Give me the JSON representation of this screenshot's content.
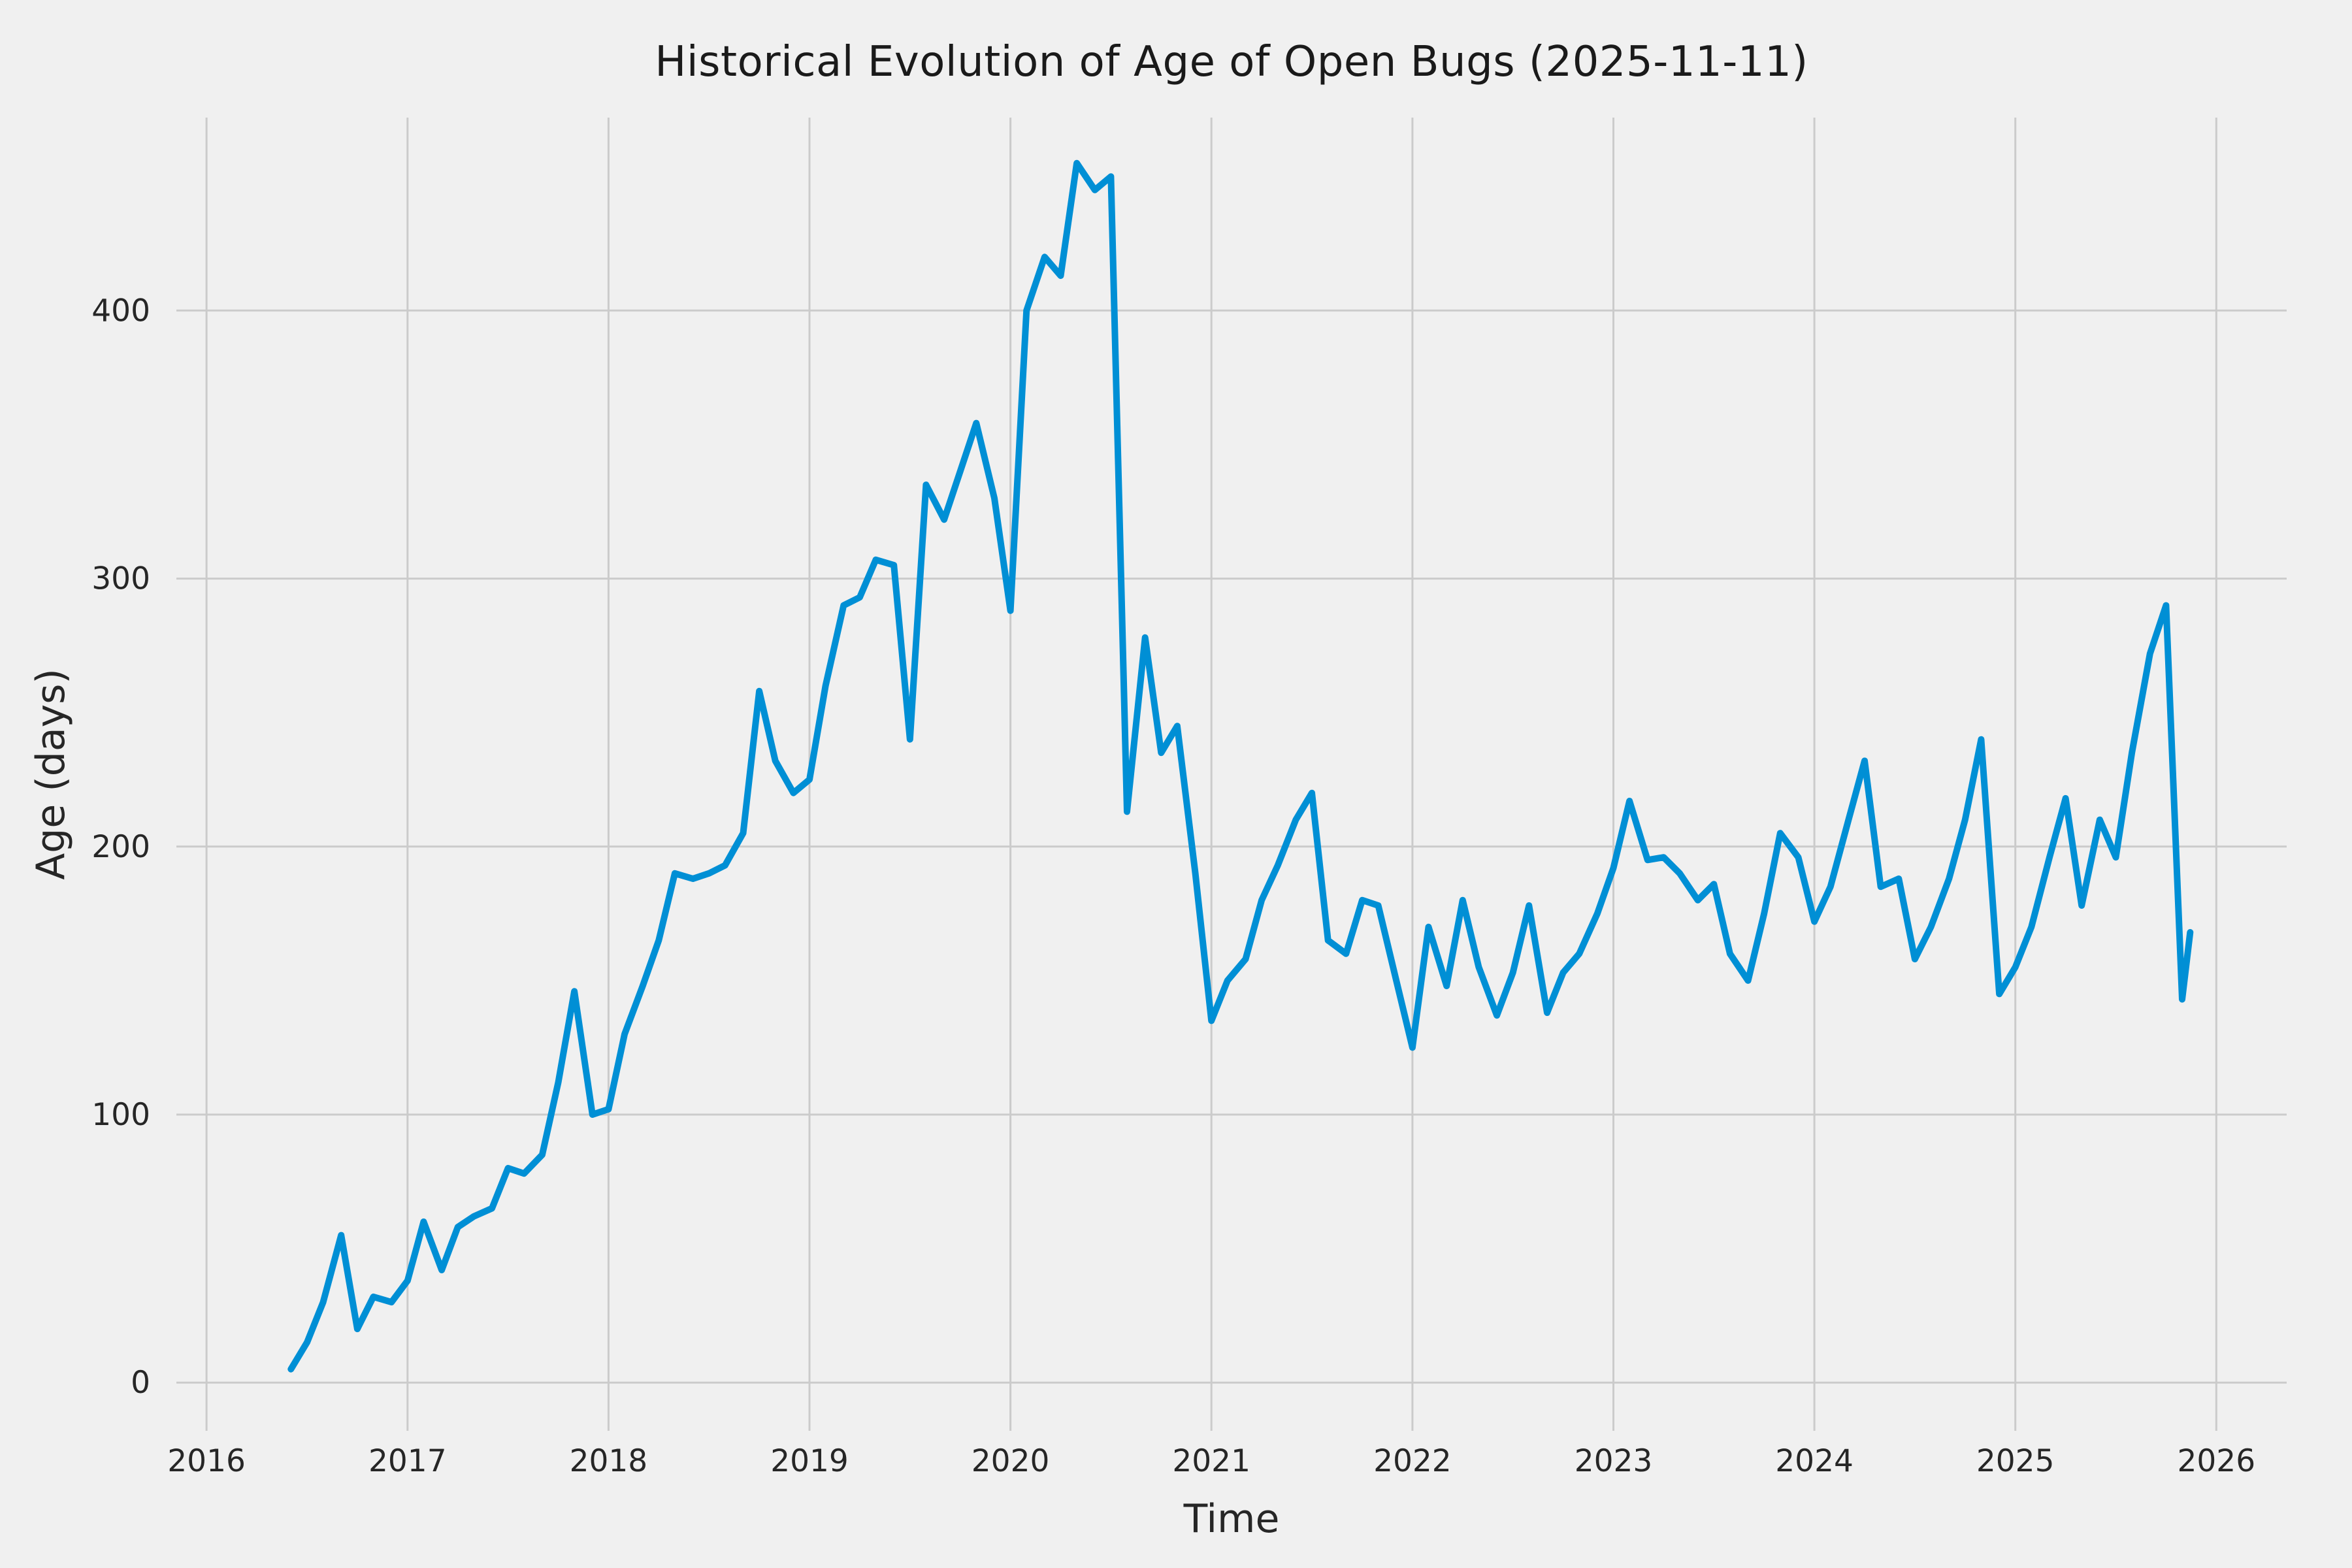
{
  "colors": {
    "background": "#f0f0f0",
    "grid": "#cbcbcb",
    "line": "#008fd5",
    "text": "#262626"
  },
  "chart_data": {
    "type": "line",
    "title": "Historical Evolution of Age of Open Bugs (2025-11-11)",
    "xlabel": "Time",
    "ylabel": "Age (days)",
    "legend": "none",
    "grid": "on",
    "xlim": [
      2015.85,
      2026.35
    ],
    "ylim": [
      -18,
      472
    ],
    "x_ticks": [
      2016,
      2017,
      2018,
      2019,
      2020,
      2021,
      2022,
      2023,
      2024,
      2025,
      2026
    ],
    "y_ticks": [
      0,
      100,
      200,
      300,
      400
    ],
    "series_name": "Age of Open Bugs",
    "x": [
      2016.42,
      2016.5,
      2016.58,
      2016.67,
      2016.75,
      2016.83,
      2016.92,
      2017.0,
      2017.08,
      2017.17,
      2017.25,
      2017.33,
      2017.42,
      2017.5,
      2017.58,
      2017.67,
      2017.75,
      2017.83,
      2017.92,
      2018.0,
      2018.08,
      2018.17,
      2018.25,
      2018.33,
      2018.42,
      2018.5,
      2018.58,
      2018.67,
      2018.75,
      2018.83,
      2018.92,
      2019.0,
      2019.08,
      2019.17,
      2019.25,
      2019.33,
      2019.42,
      2019.5,
      2019.58,
      2019.67,
      2019.75,
      2019.83,
      2019.92,
      2020.0,
      2020.08,
      2020.17,
      2020.25,
      2020.33,
      2020.42,
      2020.5,
      2020.58,
      2020.67,
      2020.75,
      2020.83,
      2020.92,
      2021.0,
      2021.08,
      2021.17,
      2021.25,
      2021.33,
      2021.42,
      2021.5,
      2021.58,
      2021.67,
      2021.75,
      2021.83,
      2021.92,
      2022.0,
      2022.08,
      2022.17,
      2022.25,
      2022.33,
      2022.42,
      2022.5,
      2022.58,
      2022.67,
      2022.75,
      2022.83,
      2022.92,
      2023.0,
      2023.08,
      2023.17,
      2023.25,
      2023.33,
      2023.42,
      2023.5,
      2023.58,
      2023.67,
      2023.75,
      2023.83,
      2023.92,
      2024.0,
      2024.08,
      2024.17,
      2024.25,
      2024.33,
      2024.42,
      2024.5,
      2024.58,
      2024.67,
      2024.75,
      2024.83,
      2024.92,
      2025.0,
      2025.08,
      2025.17,
      2025.25,
      2025.33,
      2025.42,
      2025.5,
      2025.58,
      2025.67,
      2025.75,
      2025.83,
      2025.87
    ],
    "values": [
      5,
      15,
      30,
      55,
      20,
      32,
      30,
      38,
      60,
      42,
      58,
      62,
      65,
      80,
      78,
      85,
      112,
      146,
      100,
      102,
      130,
      148,
      165,
      190,
      188,
      190,
      193,
      205,
      258,
      232,
      220,
      225,
      260,
      290,
      293,
      307,
      305,
      240,
      335,
      322,
      340,
      358,
      330,
      288,
      400,
      420,
      413,
      455,
      445,
      450,
      213,
      278,
      235,
      245,
      190,
      135,
      150,
      158,
      180,
      193,
      210,
      220,
      165,
      160,
      180,
      178,
      150,
      125,
      170,
      148,
      180,
      155,
      137,
      153,
      178,
      138,
      153,
      160,
      175,
      192,
      217,
      195,
      196,
      190,
      180,
      186,
      160,
      150,
      175,
      205,
      196,
      172,
      185,
      210,
      232,
      185,
      188,
      158,
      170,
      188,
      210,
      240,
      145,
      155,
      170,
      196,
      218,
      178,
      210,
      196,
      235,
      272,
      290,
      143,
      168
    ]
  }
}
